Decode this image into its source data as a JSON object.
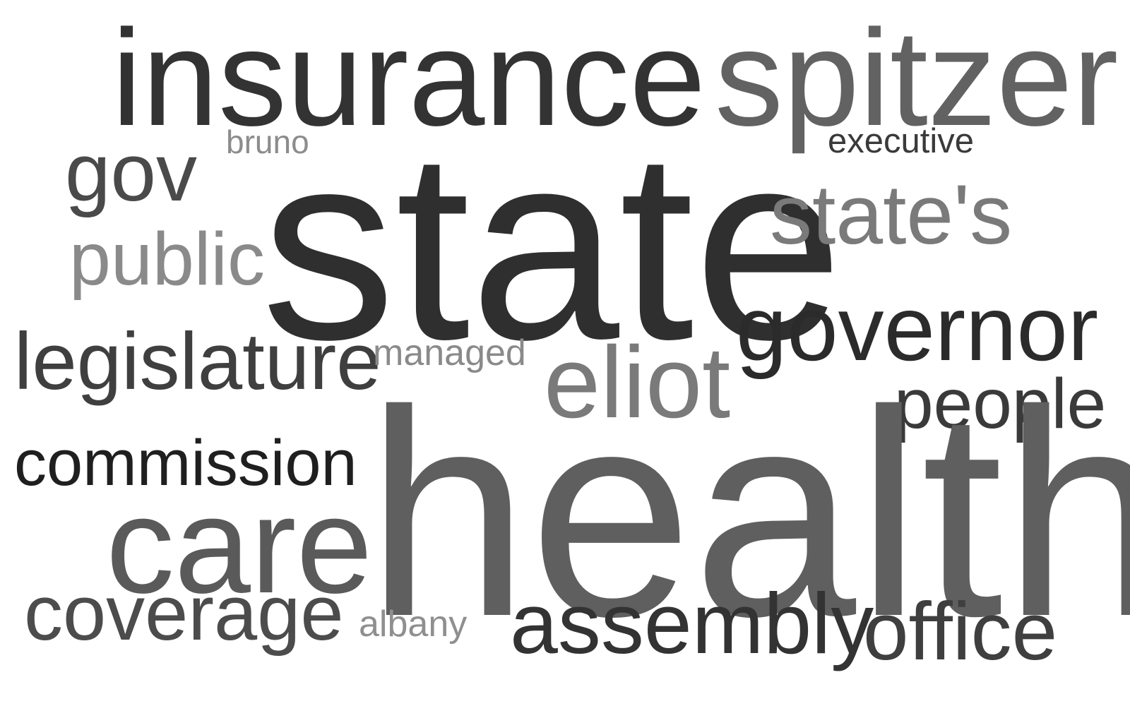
{
  "word_cloud": {
    "words": [
      {
        "id": "insurance",
        "text": "insurance",
        "color": "#333333"
      },
      {
        "id": "spitzer",
        "text": "spitzer",
        "color": "#626262"
      },
      {
        "id": "gov",
        "text": "gov",
        "color": "#4a4a4a"
      },
      {
        "id": "bruno",
        "text": "bruno",
        "color": "#8c8c8c"
      },
      {
        "id": "executive",
        "text": "executive",
        "color": "#3a3a3a"
      },
      {
        "id": "state",
        "text": "state",
        "color": "#2f2f2f"
      },
      {
        "id": "states",
        "text": "state's",
        "color": "#7a7a7a"
      },
      {
        "id": "public",
        "text": "public",
        "color": "#8a8a8a"
      },
      {
        "id": "governor",
        "text": "governor",
        "color": "#2b2b2b"
      },
      {
        "id": "legislature",
        "text": "legislature",
        "color": "#3f3f3f"
      },
      {
        "id": "managed",
        "text": "managed",
        "color": "#8a8a8a"
      },
      {
        "id": "eliot",
        "text": "eliot",
        "color": "#7a7a7a"
      },
      {
        "id": "people",
        "text": "people",
        "color": "#3a3a3a"
      },
      {
        "id": "commission",
        "text": "commission",
        "color": "#1f1f1f"
      },
      {
        "id": "health",
        "text": "health",
        "color": "#5f5f5f"
      },
      {
        "id": "care",
        "text": "care",
        "color": "#5a5a5a"
      },
      {
        "id": "coverage",
        "text": "coverage",
        "color": "#4c4c4c"
      },
      {
        "id": "albany",
        "text": "albany",
        "color": "#8f8f8f"
      },
      {
        "id": "assembly",
        "text": "assembly",
        "color": "#333333"
      },
      {
        "id": "office",
        "text": "office",
        "color": "#3f3f3f"
      }
    ]
  }
}
